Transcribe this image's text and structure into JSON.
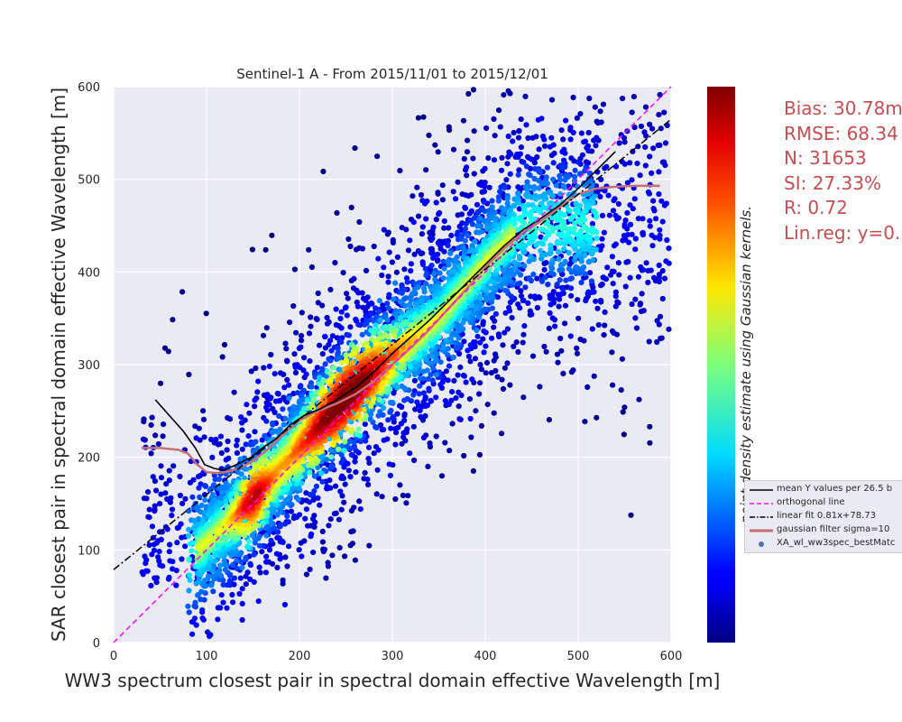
{
  "chart_data": {
    "type": "scatter",
    "title": "Sentinel-1 A - From 2015/11/01 to 2015/12/01",
    "xlabel": "WW3 spectrum closest pair in spectral domain effective Wavelength [m]",
    "ylabel": "SAR closest pair in spectral domain effective Wavelength [m]",
    "xlim": [
      0,
      600
    ],
    "ylim": [
      0,
      600
    ],
    "xticks": [
      "0",
      "100",
      "200",
      "300",
      "400",
      "500",
      "600"
    ],
    "yticks": [
      "0",
      "100",
      "200",
      "300",
      "400",
      "500",
      "600"
    ],
    "grid": true,
    "colorbar_label": "point density estimate using Gaussian kernels.",
    "colormap": "jet",
    "stats": [
      "Bias: 30.78m",
      "RMSE: 68.34",
      "N: 31653",
      "SI: 27.33%",
      "R: 0.72",
      "Lin.reg: y=0."
    ],
    "legend_position": "lower-right-outside",
    "legend": [
      {
        "label": "mean Y values per 26.5 b",
        "style": "solid",
        "color": "#000000"
      },
      {
        "label": "orthogonal line",
        "style": "dashed",
        "color": "#ff00ff"
      },
      {
        "label": "linear fit 0.81x+78.73",
        "style": "dashdot",
        "color": "#000000"
      },
      {
        "label": "gaussian filter sigma=10",
        "style": "solid-thick",
        "color": "#c47078"
      },
      {
        "label": "XA_wl_ww3spec_bestMatc",
        "style": "marker",
        "color": "#4c72b0"
      }
    ],
    "orthogonal_line": {
      "x": [
        0,
        600
      ],
      "y": [
        0,
        600
      ]
    },
    "linear_fit": {
      "slope": 0.81,
      "intercept": 78.73,
      "x": [
        0,
        600
      ]
    },
    "mean_y_per_bin": {
      "x": [
        45,
        60,
        75,
        88,
        98,
        108,
        118,
        128,
        138,
        148,
        160,
        175,
        190,
        205,
        222,
        240,
        260,
        280,
        300,
        320,
        340,
        360,
        380,
        400,
        420,
        440,
        460,
        480,
        500,
        520,
        540
      ],
      "y": [
        262,
        245,
        228,
        210,
        192,
        188,
        186,
        190,
        195,
        200,
        210,
        220,
        235,
        245,
        252,
        262,
        275,
        292,
        312,
        330,
        348,
        368,
        388,
        408,
        428,
        445,
        458,
        472,
        490,
        510,
        530
      ]
    },
    "gaussian_filter": {
      "x": [
        30,
        50,
        70,
        80,
        90,
        100,
        110,
        120,
        135,
        150,
        165,
        180,
        200,
        220,
        240,
        260,
        280,
        300,
        320,
        340,
        360,
        380,
        400,
        420,
        440,
        460,
        480,
        500,
        520,
        540,
        560,
        588
      ],
      "y": [
        210,
        210,
        208,
        204,
        192,
        184,
        183,
        184,
        188,
        196,
        208,
        222,
        240,
        250,
        258,
        268,
        282,
        300,
        318,
        338,
        360,
        382,
        405,
        425,
        442,
        455,
        470,
        484,
        490,
        492,
        493,
        493
      ]
    },
    "density_core": {
      "x": [
        80,
        140,
        200,
        250,
        300,
        350,
        400,
        440
      ],
      "y": [
        90,
        145,
        210,
        265,
        310,
        350,
        410,
        450
      ]
    },
    "outlier_region": {
      "x": [
        30,
        600
      ],
      "y": [
        60,
        600
      ]
    }
  }
}
